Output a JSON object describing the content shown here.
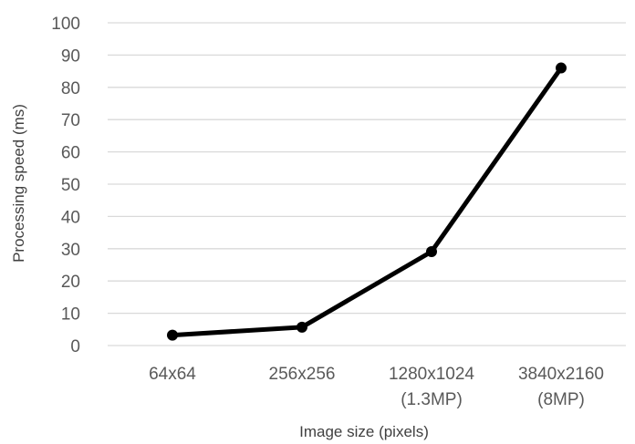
{
  "chart_data": {
    "type": "line",
    "title": "",
    "xlabel": "Image size (pixels)",
    "ylabel": "Processing speed (ms)",
    "ylim": [
      0,
      100
    ],
    "yticks": [
      "0",
      "10",
      "20",
      "30",
      "40",
      "50",
      "60",
      "70",
      "80",
      "90",
      "100"
    ],
    "categories": [
      [
        "64x64"
      ],
      [
        "256x256"
      ],
      [
        "1280x1024",
        "(1.3MP)"
      ],
      [
        "3840x2160",
        "(8MP)"
      ]
    ],
    "series": [
      {
        "values": [
          3.2,
          5.7,
          29.1,
          86.0
        ]
      }
    ],
    "grid": true,
    "legend": "none",
    "colors": {
      "line": "#000000",
      "grid": "#d9d9d9",
      "tick_text": "#595959"
    }
  }
}
